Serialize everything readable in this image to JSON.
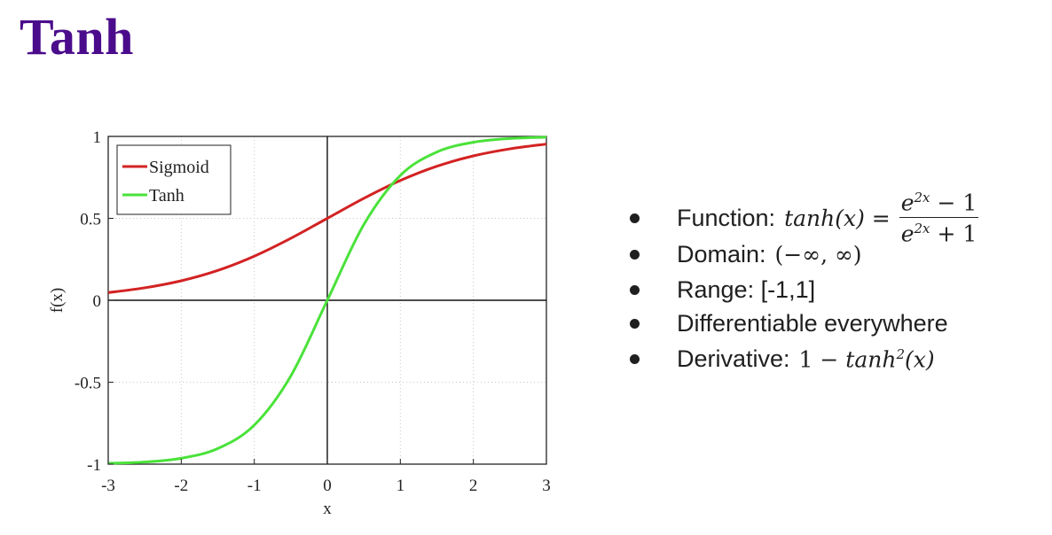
{
  "title": "Tanh",
  "colors": {
    "title": "#4b0c8c",
    "sigmoid": "#d32222",
    "tanh": "#4ae23a"
  },
  "chart_data": {
    "type": "line",
    "title": "",
    "xlabel": "x",
    "ylabel": "f(x)",
    "xlim": [
      -3,
      3
    ],
    "ylim": [
      -1,
      1
    ],
    "x_ticks": [
      "-3",
      "-2",
      "-1",
      "0",
      "1",
      "2",
      "3"
    ],
    "y_ticks": [
      "1",
      "0.5",
      "0",
      "-0.5",
      "-1"
    ],
    "grid": true,
    "legend_position": "top-left",
    "series": [
      {
        "name": "Sigmoid",
        "color": "#d32222",
        "x": [
          -3,
          -2.5,
          -2,
          -1.5,
          -1,
          -0.5,
          0,
          0.5,
          1,
          1.5,
          2,
          2.5,
          3
        ],
        "y": [
          0.047,
          0.076,
          0.119,
          0.182,
          0.269,
          0.378,
          0.5,
          0.622,
          0.731,
          0.818,
          0.881,
          0.924,
          0.953
        ]
      },
      {
        "name": "Tanh",
        "color": "#4ae23a",
        "x": [
          -3,
          -2.5,
          -2,
          -1.5,
          -1,
          -0.5,
          0,
          0.5,
          1,
          1.5,
          2,
          2.5,
          3
        ],
        "y": [
          -0.995,
          -0.987,
          -0.964,
          -0.905,
          -0.762,
          -0.462,
          0,
          0.462,
          0.762,
          0.905,
          0.964,
          0.987,
          0.995
        ]
      }
    ]
  },
  "bullets": {
    "function_label": "Function:",
    "function_lhs": "tanh(x) =",
    "function_num_base": "e",
    "function_num_exp": "2x",
    "function_num_rest": " − 1",
    "function_den_base": "e",
    "function_den_exp": "2x",
    "function_den_rest": " + 1",
    "domain_label": "Domain:",
    "domain_value": "(−∞, ∞)",
    "range_label": "Range: [-1,1]",
    "differentiable_label": "Differentiable everywhere",
    "derivative_label": "Derivative:",
    "derivative_pre": "1 − ",
    "derivative_fn": "tanh",
    "derivative_exp": "2",
    "derivative_post": "(x)"
  }
}
